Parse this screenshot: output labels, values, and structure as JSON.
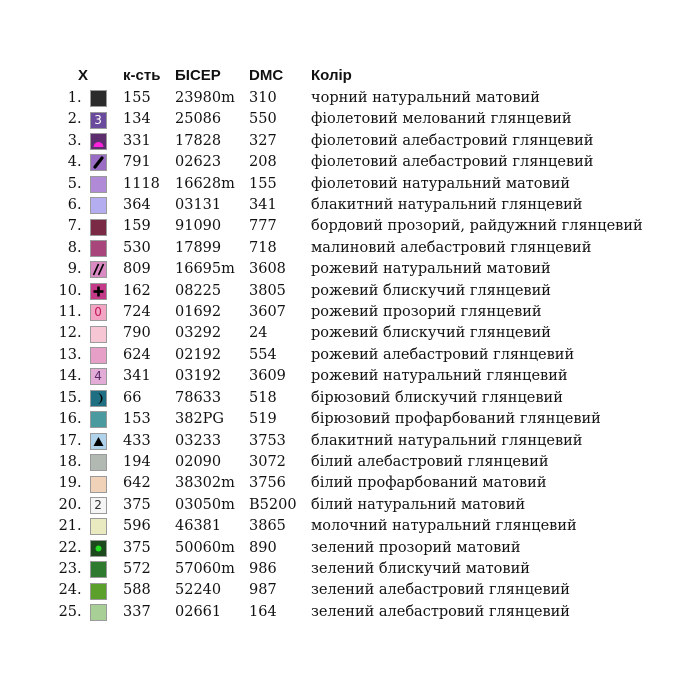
{
  "headers": {
    "symbol": "X",
    "quantity": "к-сть",
    "bead": "БІСЕР",
    "dmc": "DMC",
    "color": "Колір"
  },
  "rows": [
    {
      "num": "1.",
      "qty": "155",
      "bead": "23980m",
      "dmc": "310",
      "name": "чорний натуральний матовий",
      "swatch": "#2b2b2b",
      "symbol": "none"
    },
    {
      "num": "2.",
      "qty": "134",
      "bead": "25086",
      "dmc": "550",
      "name": "фіолетовий мелований глянцевий",
      "swatch": "#6a4a9c",
      "symbol": "digit",
      "symbol_text": "3",
      "symbol_color": "#ffffff"
    },
    {
      "num": "3.",
      "qty": "331",
      "bead": "17828",
      "dmc": "327",
      "name": "фіолетовий алебастровий глянцевий",
      "swatch": "#5c2e6e",
      "symbol": "magenta-semicircle-icon",
      "symbol_color": "#ff22dd"
    },
    {
      "num": "4.",
      "qty": "791",
      "bead": "02623",
      "dmc": "208",
      "name": "фіолетовий алебастровий глянцевий",
      "swatch": "#9a6cc4",
      "symbol": "black-bar-icon",
      "symbol_color": "#000000"
    },
    {
      "num": "5.",
      "qty": "1118",
      "bead": "16628m",
      "dmc": "155",
      "name": "фіолетовий натуральний матовий",
      "swatch": "#b08ad6",
      "symbol": "none"
    },
    {
      "num": "6.",
      "qty": "364",
      "bead": "03131",
      "dmc": "341",
      "name": "блакитний натуральний глянцевий",
      "swatch": "#b4aef0",
      "symbol": "none"
    },
    {
      "num": "7.",
      "qty": "159",
      "bead": "91090",
      "dmc": "777",
      "name": "бордовий прозорий, райдужний глянцевий",
      "swatch": "#7a2a45",
      "symbol": "none"
    },
    {
      "num": "8.",
      "qty": "530",
      "bead": "17899",
      "dmc": "718",
      "name": "малиновий алебастровий глянцевий",
      "swatch": "#a8467c",
      "symbol": "none"
    },
    {
      "num": "9.",
      "qty": "809",
      "bead": "16695m",
      "dmc": "3608",
      "name": "рожевий натуральний матовий",
      "swatch": "#d98ac2",
      "symbol": "double-slash-icon",
      "symbol_color": "#000000"
    },
    {
      "num": "10.",
      "qty": "162",
      "bead": "08225",
      "dmc": "3805",
      "name": "рожевий блискучий глянцевий",
      "swatch": "#c43a88",
      "symbol": "black-cross-icon",
      "symbol_color": "#000000"
    },
    {
      "num": "11.",
      "qty": "724",
      "bead": "01692",
      "dmc": "3607",
      "name": "рожевий прозорий глянцевий",
      "swatch": "#f3a6c4",
      "symbol": "digit",
      "symbol_text": "0",
      "symbol_color": "#c2185b"
    },
    {
      "num": "12.",
      "qty": "790",
      "bead": "03292",
      "dmc": "24",
      "name": "рожевий блискучий глянцевий",
      "swatch": "#f6c6d4",
      "symbol": "none"
    },
    {
      "num": "13.",
      "qty": "624",
      "bead": "02192",
      "dmc": "554",
      "name": "рожевий алебастровий глянцевий",
      "swatch": "#e6a0c8",
      "symbol": "none"
    },
    {
      "num": "14.",
      "qty": "341",
      "bead": "03192",
      "dmc": "3609",
      "name": "рожевий натуральний глянцевий",
      "swatch": "#e2acd6",
      "symbol": "digit",
      "symbol_text": "4",
      "symbol_color": "#5a2a6a"
    },
    {
      "num": "15.",
      "qty": "66",
      "bead": "78633",
      "dmc": "518",
      "name": "бірюзовий блискучий глянцевий",
      "swatch": "#1f6f82",
      "symbol": "black-crescent-icon",
      "symbol_color": "#000000"
    },
    {
      "num": "16.",
      "qty": "153",
      "bead": "382PG",
      "dmc": "519",
      "name": "бірюзовий профарбований глянцевий",
      "swatch": "#4a9aa0",
      "symbol": "none"
    },
    {
      "num": "17.",
      "qty": "433",
      "bead": "03233",
      "dmc": "3753",
      "name": "блакитний натуральний глянцевий",
      "swatch": "#b0d2ea",
      "symbol": "black-triangle-icon",
      "symbol_color": "#000000"
    },
    {
      "num": "18.",
      "qty": "194",
      "bead": "02090",
      "dmc": "3072",
      "name": "білий алебастровий глянцевий",
      "swatch": "#b2b8b2",
      "symbol": "none"
    },
    {
      "num": "19.",
      "qty": "642",
      "bead": "38302m",
      "dmc": "3756",
      "name": "білий профарбований матовий",
      "swatch": "#f0d2b8",
      "symbol": "none"
    },
    {
      "num": "20.",
      "qty": "375",
      "bead": "03050m",
      "dmc": "B5200",
      "name": "білий натуральний матовий",
      "swatch": "#f5f5f5",
      "symbol": "digit",
      "symbol_text": "2",
      "symbol_color": "#333333"
    },
    {
      "num": "21.",
      "qty": "596",
      "bead": "46381",
      "dmc": "3865",
      "name": "молочний натуральний глянцевий",
      "swatch": "#eaeac0",
      "symbol": "none"
    },
    {
      "num": "22.",
      "qty": "375",
      "bead": "50060m",
      "dmc": "890",
      "name": "зелений прозорий матовий",
      "swatch": "#1c4a1c",
      "symbol": "green-dot-icon",
      "symbol_color": "#22dd22"
    },
    {
      "num": "23.",
      "qty": "572",
      "bead": "57060m",
      "dmc": "986",
      "name": "зелений блискучий матовий",
      "swatch": "#2e7a2e",
      "symbol": "none"
    },
    {
      "num": "24.",
      "qty": "588",
      "bead": "52240",
      "dmc": "987",
      "name": "зелений алебастровий глянцевий",
      "swatch": "#5aa02a",
      "symbol": "none"
    },
    {
      "num": "25.",
      "qty": "337",
      "bead": "02661",
      "dmc": "164",
      "name": "зелений алебастровий глянцевий",
      "swatch": "#a8d096",
      "symbol": "none"
    }
  ]
}
